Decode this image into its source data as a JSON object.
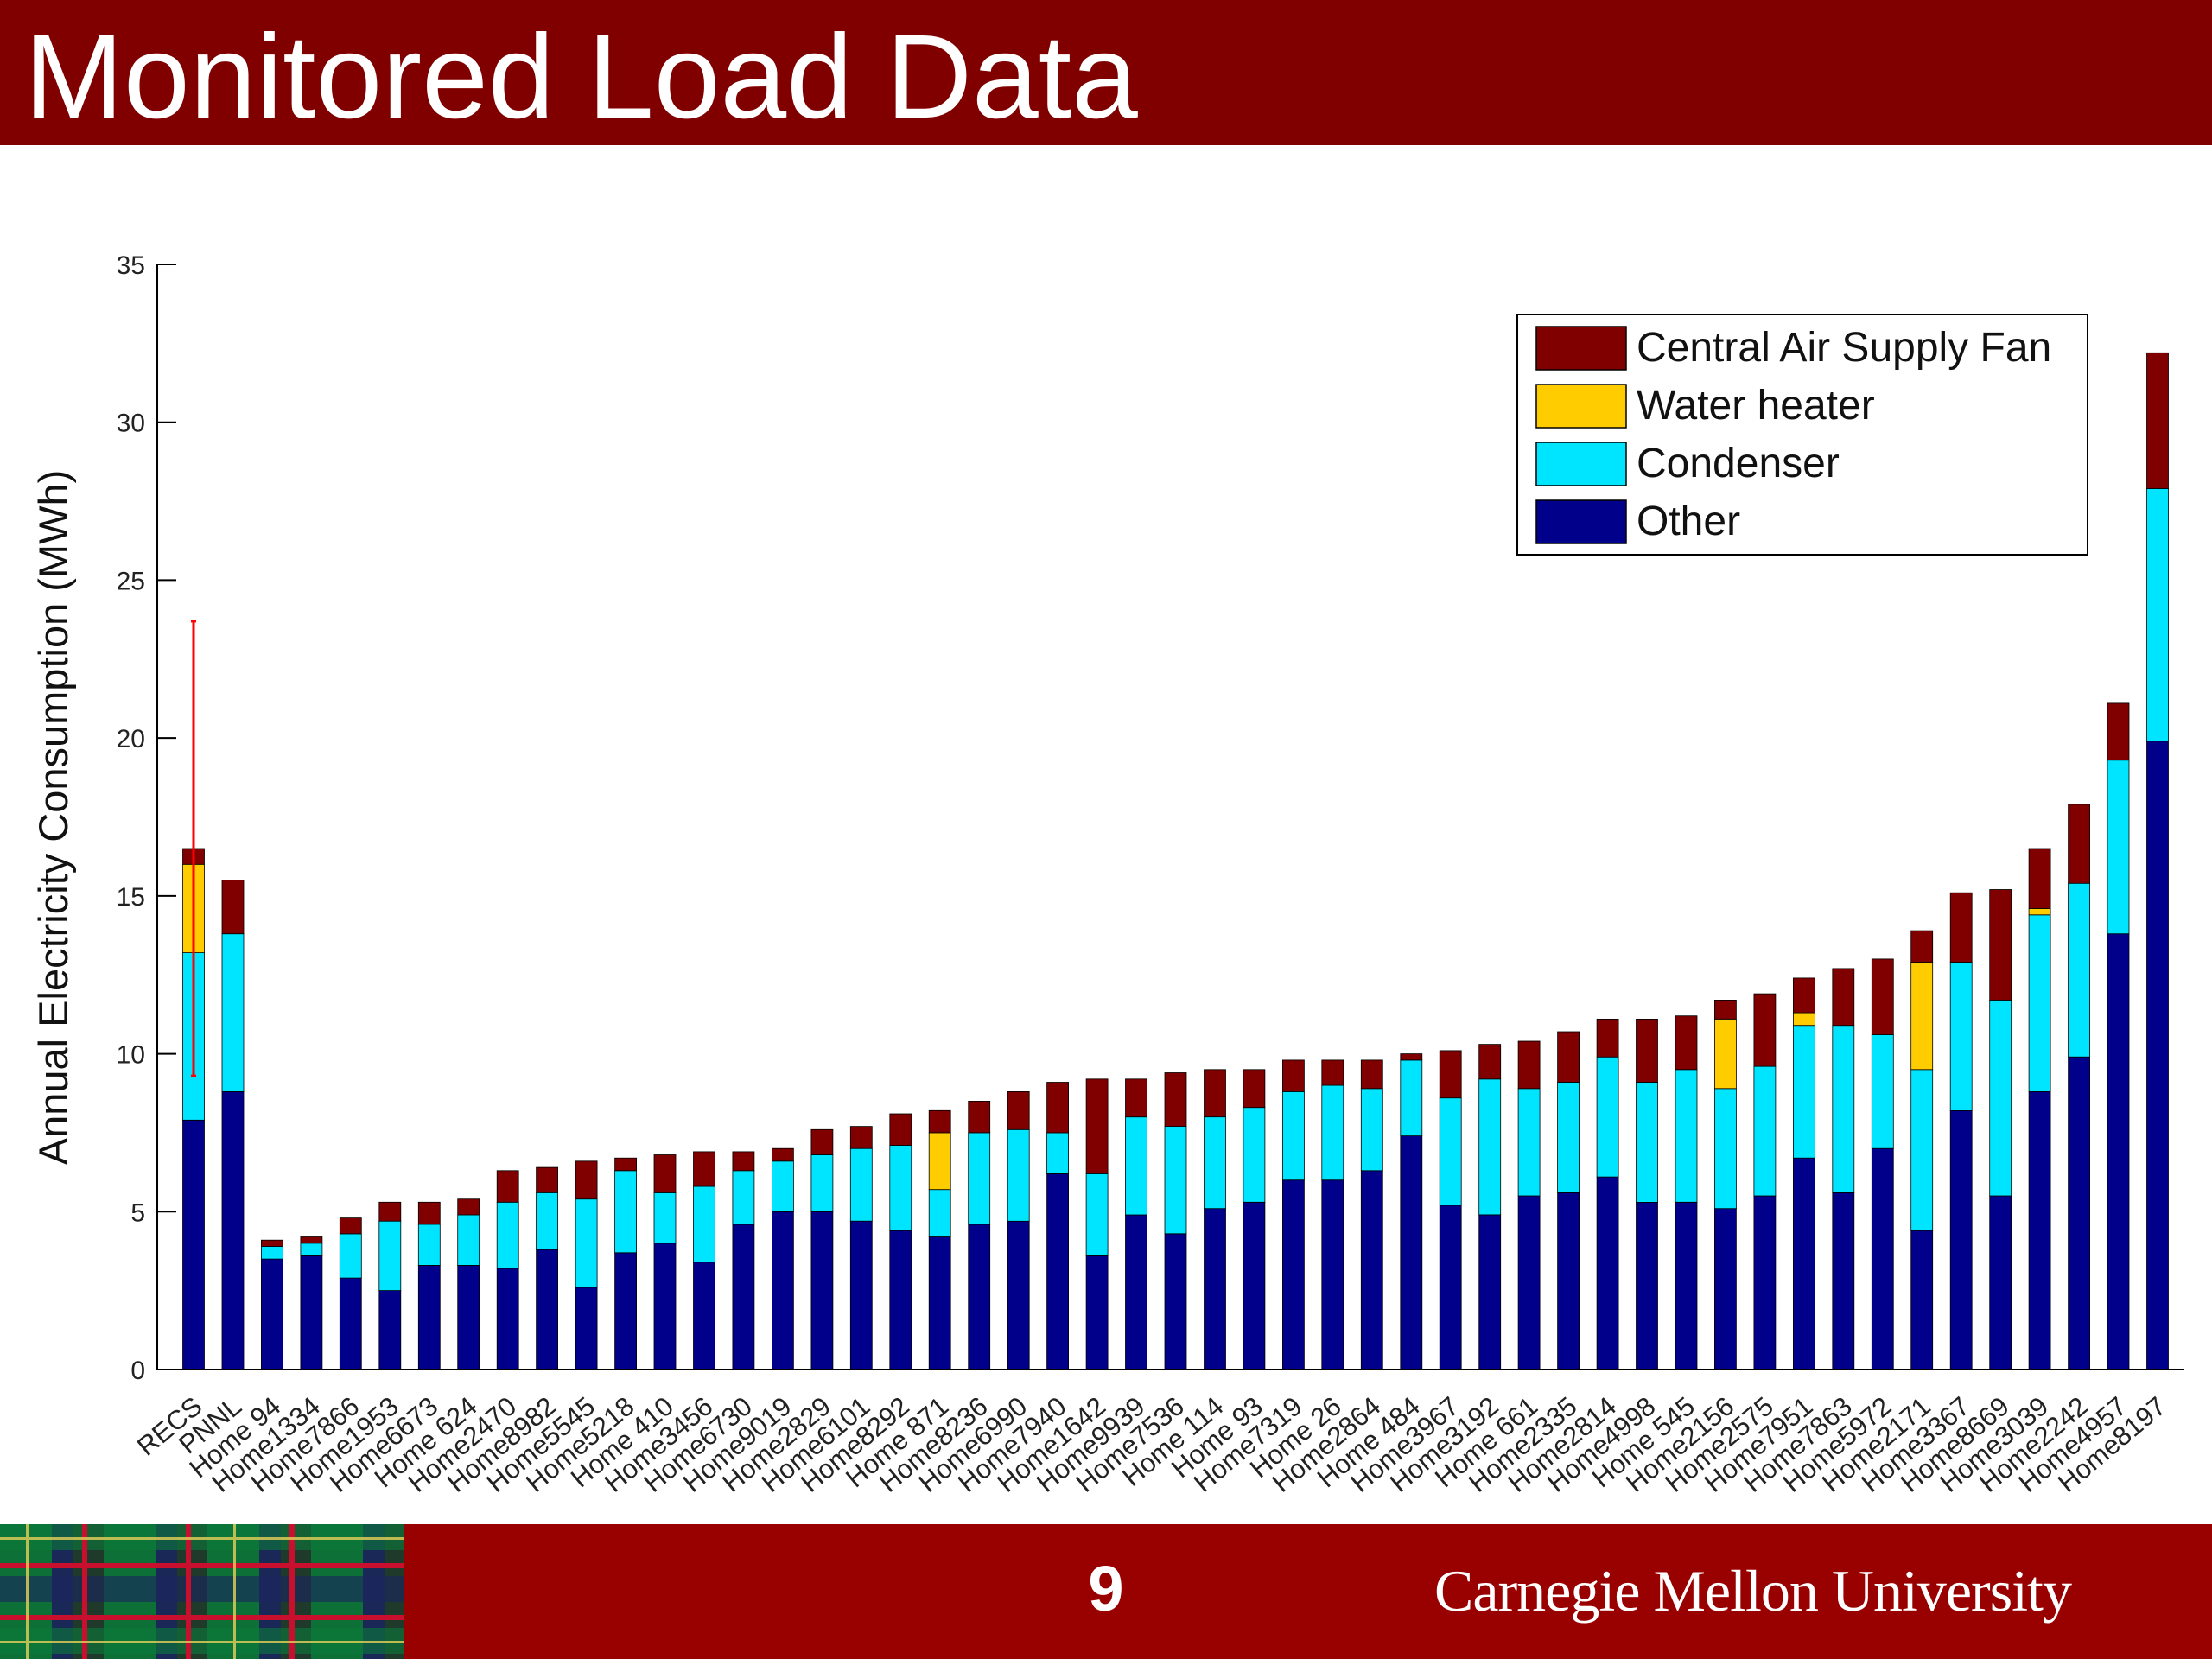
{
  "slide": {
    "title": "Monitored Load Data",
    "page_number": "9",
    "logo_text": "Carnegie Mellon University"
  },
  "colors": {
    "title_bar": "#800000",
    "footer_bar": "#990000",
    "fan": "#800000",
    "water_heater": "#FFCC00",
    "condenser": "#00E5FF",
    "other": "#00008B",
    "error_bar": "#FF0000"
  },
  "chart_data": {
    "type": "bar",
    "stacked": true,
    "title": "",
    "xlabel": "",
    "ylabel": "Annual Electricity Consumption (MWh)",
    "ylim": [
      0,
      35
    ],
    "yticks": [
      0,
      5,
      10,
      15,
      20,
      25,
      30,
      35
    ],
    "grid": false,
    "legend_position": "top-right",
    "categories": [
      "RECS",
      "PNNL",
      "Home 94",
      "Home1334",
      "Home7866",
      "Home1953",
      "Home6673",
      "Home 624",
      "Home2470",
      "Home8982",
      "Home5545",
      "Home5218",
      "Home 410",
      "Home3456",
      "Home6730",
      "Home9019",
      "Home2829",
      "Home6101",
      "Home8292",
      "Home 871",
      "Home8236",
      "Home6990",
      "Home7940",
      "Home1642",
      "Home9939",
      "Home7536",
      "Home 114",
      "Home 93",
      "Home7319",
      "Home 26",
      "Home2864",
      "Home 484",
      "Home3967",
      "Home3192",
      "Home 661",
      "Home2335",
      "Home2814",
      "Home4998",
      "Home 545",
      "Home2156",
      "Home2575",
      "Home7951",
      "Home7863",
      "Home5972",
      "Home2171",
      "Home3367",
      "Home8669",
      "Home3039",
      "Home2242",
      "Home4957",
      "Home8197"
    ],
    "series": [
      {
        "name": "Other",
        "values": [
          7.9,
          8.8,
          3.5,
          3.6,
          2.9,
          2.5,
          3.3,
          3.3,
          3.2,
          3.8,
          2.6,
          3.7,
          4.0,
          3.4,
          4.6,
          5.0,
          5.0,
          4.7,
          4.4,
          4.2,
          4.6,
          4.7,
          6.2,
          3.6,
          4.9,
          4.3,
          5.1,
          5.3,
          6.0,
          6.0,
          6.3,
          7.4,
          5.2,
          4.9,
          5.5,
          5.6,
          6.1,
          5.3,
          5.3,
          5.1,
          5.5,
          6.7,
          5.6,
          7.0,
          4.4,
          8.2,
          5.5,
          8.8,
          9.9,
          13.8,
          19.9
        ]
      },
      {
        "name": "Condenser",
        "values": [
          5.3,
          5.0,
          0.4,
          0.4,
          1.4,
          2.2,
          1.3,
          1.6,
          2.1,
          1.8,
          2.8,
          2.6,
          1.6,
          2.4,
          1.7,
          1.6,
          1.8,
          2.3,
          2.7,
          1.5,
          2.9,
          2.9,
          1.3,
          2.6,
          3.1,
          3.4,
          2.9,
          3.0,
          2.8,
          3.0,
          2.6,
          2.4,
          3.4,
          4.3,
          3.4,
          3.5,
          3.8,
          3.8,
          4.2,
          3.8,
          4.1,
          4.2,
          5.3,
          3.6,
          5.1,
          4.7,
          6.2,
          5.6,
          5.5,
          5.5,
          8.0
        ]
      },
      {
        "name": "Water heater",
        "values": [
          2.8,
          0,
          0,
          0,
          0,
          0,
          0,
          0,
          0,
          0,
          0,
          0,
          0,
          0,
          0,
          0,
          0,
          0,
          0,
          1.8,
          0,
          0,
          0,
          0,
          0,
          0,
          0,
          0,
          0,
          0,
          0,
          0,
          0,
          0,
          0,
          0,
          0,
          0,
          0,
          2.2,
          0,
          0.4,
          0,
          0,
          3.4,
          0,
          0,
          0.2,
          0,
          0,
          0
        ]
      },
      {
        "name": "Central Air Supply Fan",
        "values": [
          0.5,
          1.7,
          0.2,
          0.2,
          0.5,
          0.6,
          0.7,
          0.5,
          1.0,
          0.8,
          1.2,
          0.4,
          1.2,
          1.1,
          0.6,
          0.4,
          0.8,
          0.7,
          1.0,
          0.7,
          1.0,
          1.2,
          1.6,
          3.0,
          1.2,
          1.7,
          1.5,
          1.2,
          1.0,
          0.8,
          0.9,
          0.2,
          1.5,
          1.1,
          1.5,
          1.6,
          1.2,
          2.0,
          1.7,
          0.6,
          2.3,
          1.1,
          1.8,
          2.4,
          1.0,
          2.2,
          3.5,
          1.9,
          2.5,
          1.8,
          4.3
        ]
      }
    ],
    "legend": [
      "Central Air Supply Fan",
      "Water heater",
      "Condenser",
      "Other"
    ],
    "error_bar": {
      "category": "RECS",
      "low": 9.3,
      "high": 23.7
    }
  }
}
